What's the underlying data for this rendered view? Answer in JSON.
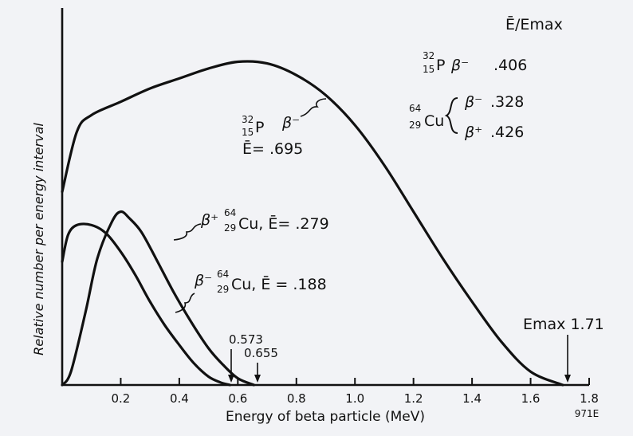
{
  "chart_data": {
    "type": "line",
    "xlabel": "Energy of beta particle (MeV)",
    "ylabel": "Relative number per energy interval",
    "xlim": [
      0,
      1.8
    ],
    "ylim": [
      0,
      1.0
    ],
    "x_ticks": [
      "0.2",
      "0.4",
      "0.6",
      "0.8",
      "1.0",
      "1.2",
      "1.4",
      "1.6",
      "1.8"
    ],
    "figure_id": "971E",
    "series": [
      {
        "name": "P-32 beta-",
        "x": [
          0,
          0.05,
          0.1,
          0.2,
          0.3,
          0.4,
          0.5,
          0.6,
          0.7,
          0.8,
          0.9,
          1.0,
          1.1,
          1.2,
          1.3,
          1.4,
          1.5,
          1.6,
          1.71
        ],
        "y": [
          0.58,
          0.76,
          0.81,
          0.85,
          0.89,
          0.92,
          0.95,
          0.97,
          0.965,
          0.93,
          0.87,
          0.78,
          0.66,
          0.52,
          0.38,
          0.25,
          0.13,
          0.04,
          0.0
        ]
      },
      {
        "name": "Cu-64 beta+",
        "x": [
          0,
          0.03,
          0.08,
          0.12,
          0.17,
          0.2,
          0.23,
          0.27,
          0.32,
          0.38,
          0.44,
          0.5,
          0.55,
          0.6,
          0.655
        ],
        "y": [
          0.0,
          0.04,
          0.22,
          0.38,
          0.49,
          0.52,
          0.5,
          0.46,
          0.38,
          0.28,
          0.19,
          0.11,
          0.06,
          0.02,
          0.0
        ]
      },
      {
        "name": "Cu-64 beta-",
        "x": [
          0,
          0.02,
          0.05,
          0.1,
          0.15,
          0.2,
          0.25,
          0.3,
          0.35,
          0.4,
          0.45,
          0.5,
          0.54,
          0.573
        ],
        "y": [
          0.37,
          0.45,
          0.48,
          0.48,
          0.455,
          0.4,
          0.33,
          0.25,
          0.18,
          0.12,
          0.065,
          0.025,
          0.008,
          0.0
        ]
      }
    ],
    "annotations": {
      "legend_header": "Ē/Emax",
      "p32_row": {
        "mass": "32",
        "atomic": "15",
        "symbol": "P",
        "particle": "β⁻",
        "value": ".406"
      },
      "cu_minus_row": {
        "mass": "64",
        "atomic": "29",
        "symbol": "Cu",
        "particle": "β⁻",
        "value": ".328"
      },
      "cu_plus_row": {
        "particle": "β⁺",
        "value": ".426"
      },
      "p32_curve_label": {
        "mass": "32",
        "atomic": "15",
        "symbol": "P",
        "particle": "β⁻",
        "mean": "Ē= .695"
      },
      "cu_plus_curve_label": {
        "particle": "β⁺",
        "mass": "64",
        "atomic": "29",
        "text": "Cu, Ē= .279"
      },
      "cu_minus_curve_label": {
        "particle": "β⁻",
        "mass": "64",
        "atomic": "29",
        "text": "Cu, Ē = .188"
      },
      "emax_label": "Emax 1.71",
      "endpoint_0573": "0.573",
      "endpoint_0655": "0.655"
    }
  }
}
